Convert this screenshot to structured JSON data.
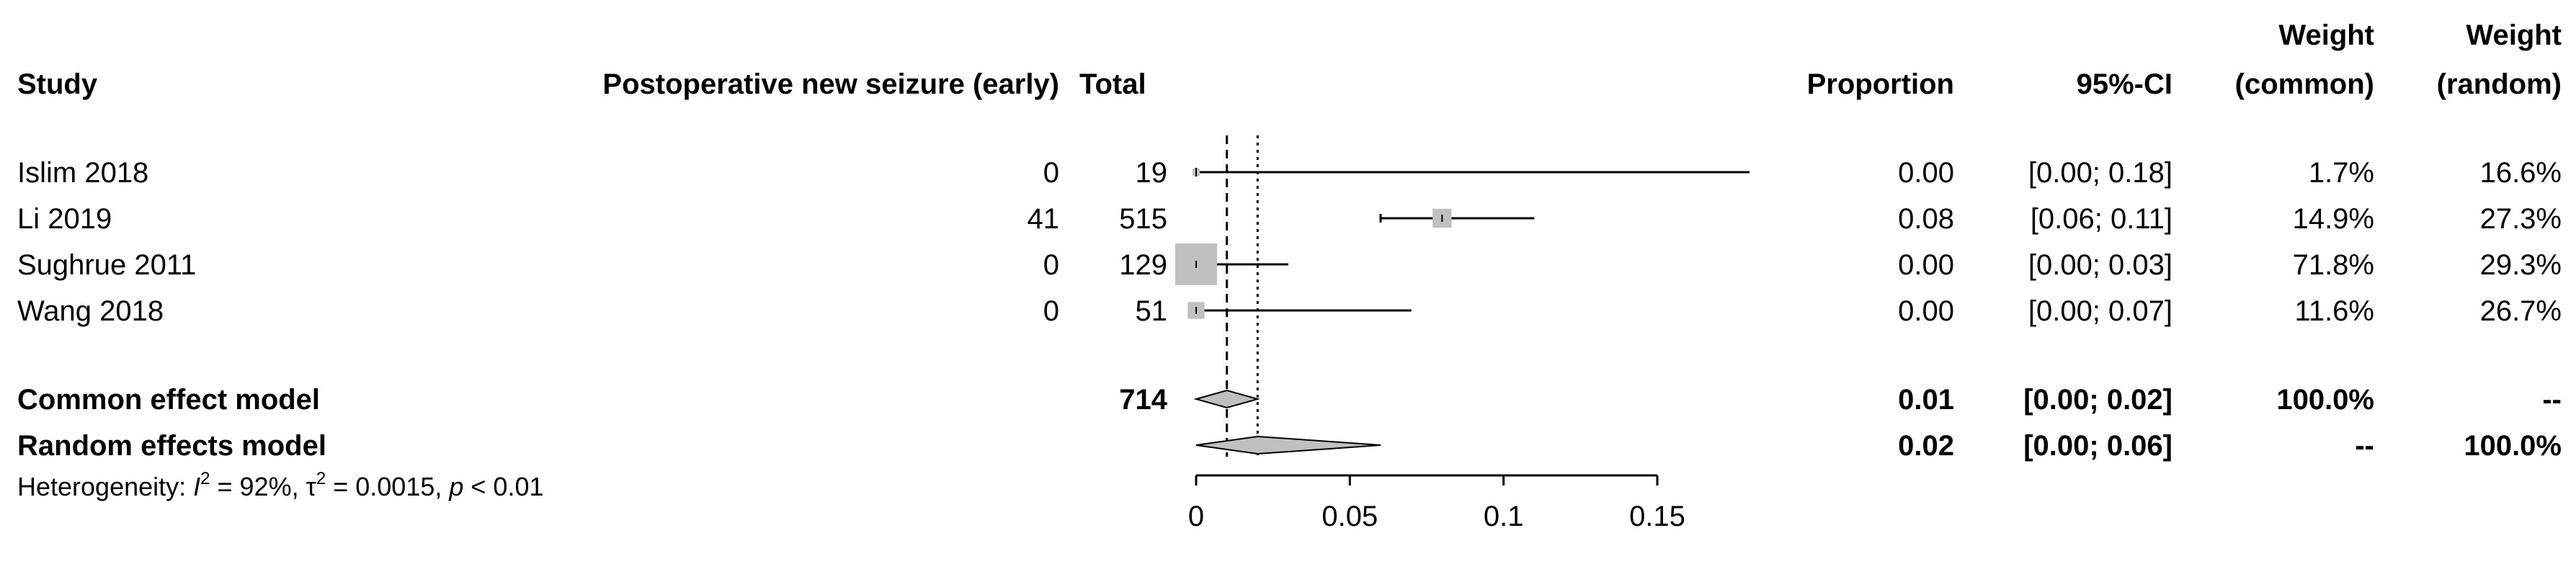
{
  "chart_data": {
    "type": "forest",
    "headers": {
      "study": "Study",
      "events": "Postoperative new seizure (early)",
      "total": "Total",
      "proportion": "Proportion",
      "ci": "95%-CI",
      "weight_common_line1": "Weight",
      "weight_common_line2": "(common)",
      "weight_random_line1": "Weight",
      "weight_random_line2": "(random)"
    },
    "studies": [
      {
        "name": "Islim 2018",
        "events": "0",
        "total": "19",
        "proportion": 0.0,
        "ci_low": 0.0,
        "ci_high": 0.18,
        "proportion_text": "0.00",
        "ci_text": "[0.00; 0.18]",
        "weight_common": "1.7%",
        "weight_random": "16.6%",
        "weight_common_value": 1.7
      },
      {
        "name": "Li 2019",
        "events": "41",
        "total": "515",
        "proportion": 0.08,
        "ci_low": 0.06,
        "ci_high": 0.11,
        "proportion_text": "0.08",
        "ci_text": "[0.06; 0.11]",
        "weight_common": "14.9%",
        "weight_random": "27.3%",
        "weight_common_value": 14.9
      },
      {
        "name": "Sughrue 2011",
        "events": "0",
        "total": "129",
        "proportion": 0.0,
        "ci_low": 0.0,
        "ci_high": 0.03,
        "proportion_text": "0.00",
        "ci_text": "[0.00; 0.03]",
        "weight_common": "71.8%",
        "weight_random": "29.3%",
        "weight_common_value": 71.8
      },
      {
        "name": "Wang 2018",
        "events": "0",
        "total": "51",
        "proportion": 0.0,
        "ci_low": 0.0,
        "ci_high": 0.07,
        "proportion_text": "0.00",
        "ci_text": "[0.00; 0.07]",
        "weight_common": "11.6%",
        "weight_random": "26.7%",
        "weight_common_value": 11.6
      }
    ],
    "common_model": {
      "label": "Common effect model",
      "total": "714",
      "estimate": 0.01,
      "ci_low": 0.0,
      "ci_high": 0.02,
      "proportion_text": "0.01",
      "ci_text": "[0.00; 0.02]",
      "weight_common": "100.0%",
      "weight_random": "--"
    },
    "random_model": {
      "label": "Random effects model",
      "estimate": 0.02,
      "ci_low": 0.0,
      "ci_high": 0.06,
      "proportion_text": "0.02",
      "ci_text": "[0.00; 0.06]",
      "weight_common": "--",
      "weight_random": "100.0%"
    },
    "heterogeneity": {
      "prefix": "Heterogeneity: ",
      "i2_symbol": "I",
      "i2_value": " = 92%, ",
      "tau2_symbol": "τ",
      "tau2_value": " = 0.0015, ",
      "p_symbol": "p",
      "p_value": " < 0.01",
      "superscript": "2"
    },
    "x_axis": {
      "ticks": [
        0,
        0.05,
        0.1,
        0.15
      ],
      "tick_labels": [
        "0",
        "0.05",
        "0.1",
        "0.15"
      ],
      "xlim": [
        0,
        0.15
      ]
    },
    "reference_lines": {
      "common": 0.01,
      "random": 0.02
    },
    "colors": {
      "square": "#c0c0c0",
      "diamond": "#c0c0c0",
      "line": "#000000"
    }
  }
}
